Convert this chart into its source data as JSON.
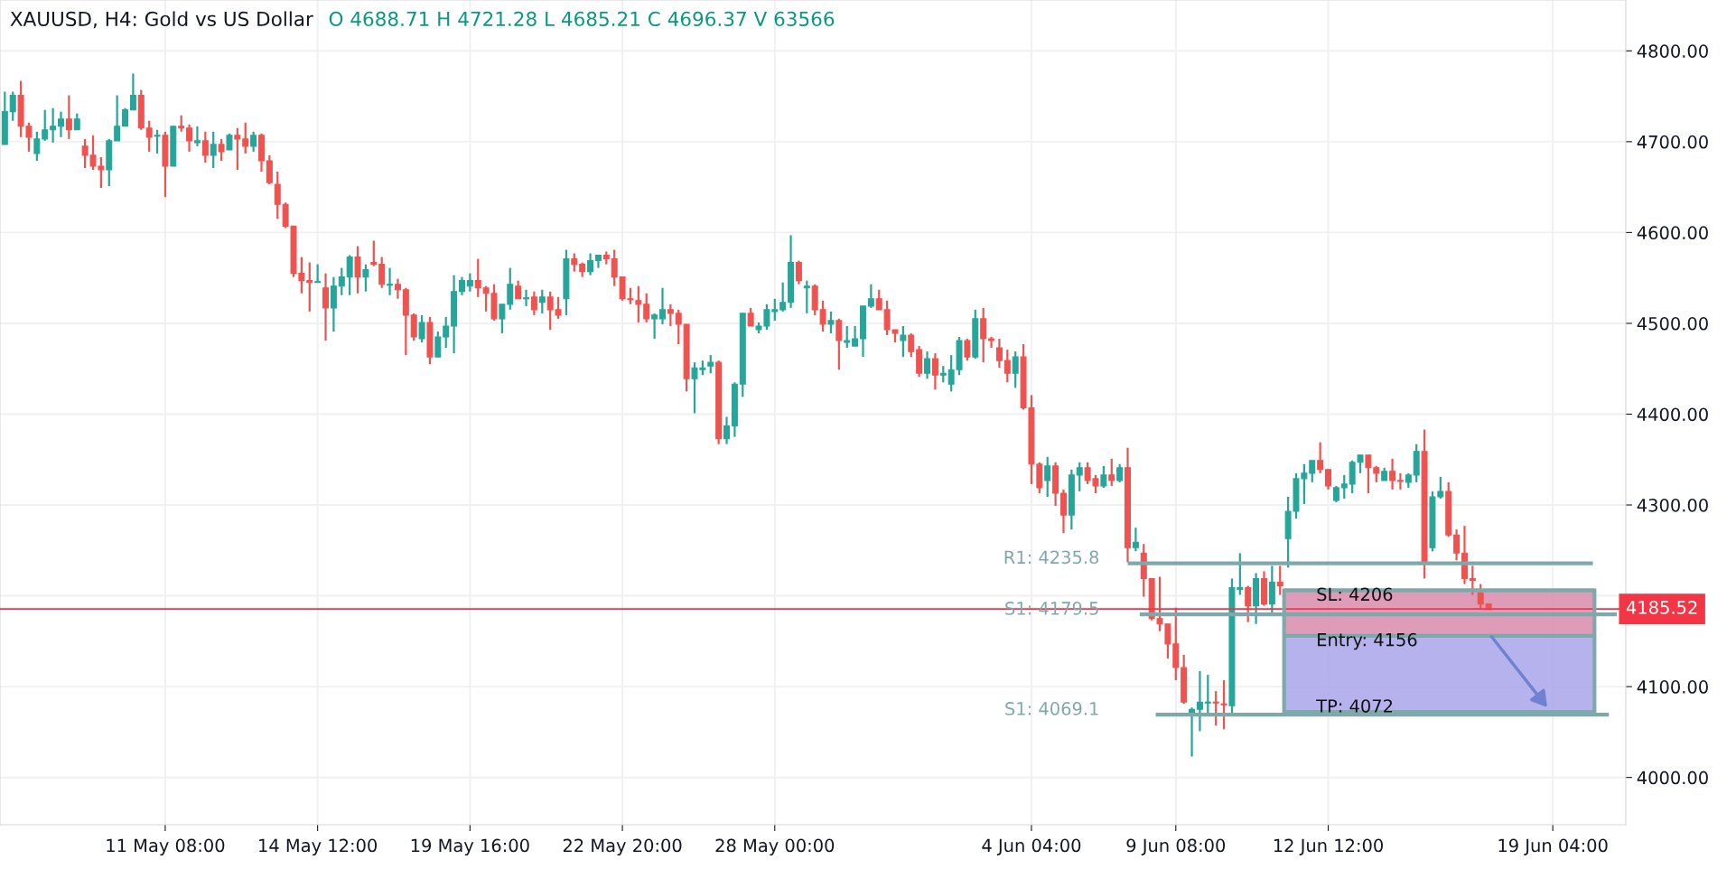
{
  "chart_data": {
    "type": "candlestick",
    "title": "XAUUSD, H4: Gold vs US Dollar",
    "subtitle": "O 4688.71 H 4721.28 L 4685.21 C 4696.37 V 63566",
    "categories": [
      null,
      null,
      null,
      null,
      null,
      null,
      null,
      null,
      null,
      null,
      null,
      null,
      null,
      null,
      null,
      null,
      null,
      null,
      null,
      null,
      "11 May 08:00",
      null,
      null,
      null,
      null,
      null,
      null,
      null,
      null,
      null,
      null,
      null,
      null,
      null,
      null,
      null,
      null,
      null,
      null,
      "14 May 12:00",
      null,
      null,
      null,
      null,
      null,
      null,
      null,
      null,
      null,
      null,
      null,
      null,
      null,
      null,
      null,
      null,
      null,
      null,
      "19 May 16:00",
      null,
      null,
      null,
      null,
      null,
      null,
      null,
      null,
      null,
      null,
      null,
      null,
      null,
      null,
      null,
      null,
      null,
      null,
      "22 May 20:00",
      null,
      null,
      null,
      null,
      null,
      null,
      null,
      null,
      null,
      null,
      null,
      null,
      null,
      null,
      null,
      null,
      null,
      null,
      "28 May 00:00",
      null,
      null,
      null,
      null,
      null,
      null,
      null,
      null,
      null,
      null,
      null,
      null,
      null,
      null,
      null,
      null,
      null,
      null,
      null,
      null,
      null,
      null,
      null,
      null,
      null,
      null,
      null,
      null,
      null,
      null,
      null,
      "4 Jun 04:00",
      null,
      null,
      null,
      null,
      null,
      null,
      null,
      null,
      null,
      null,
      null,
      null,
      null,
      null,
      null,
      null,
      null,
      "9 Jun 08:00",
      null,
      null,
      null,
      null,
      null,
      null,
      null,
      null,
      null,
      null,
      null,
      null,
      null,
      null,
      null,
      null,
      null,
      null,
      "12 Jun 12:00",
      null,
      null,
      null,
      null,
      null,
      null,
      null,
      null,
      null,
      null,
      null,
      null,
      null,
      null,
      null,
      null,
      null,
      null,
      null,
      null,
      null,
      null,
      null,
      null,
      null,
      null,
      null,
      "19 Jun 04:00",
      null,
      null,
      null,
      null,
      null,
      null,
      null,
      null,
      null
    ],
    "ohlc": [
      [
        4697,
        4755,
        4697,
        4733
      ],
      [
        4733,
        4755,
        4723,
        4751
      ],
      [
        4751,
        4767,
        4705,
        4717
      ],
      [
        4717,
        4721,
        4689,
        4705
      ],
      [
        4687,
        4711,
        4679,
        4703
      ],
      [
        4703,
        4735,
        4701,
        4713
      ],
      [
        4713,
        4737,
        4699,
        4717
      ],
      [
        4717,
        4733,
        4705,
        4725
      ],
      [
        4725,
        4751,
        4703,
        4713
      ],
      [
        4713,
        4731,
        4713,
        4725
      ],
      [
        4695,
        4703,
        4671,
        4685
      ],
      [
        4685,
        4707,
        4669,
        4673
      ],
      [
        4673,
        4683,
        4649,
        4669
      ],
      [
        4669,
        4703,
        4651,
        4701
      ],
      [
        4701,
        4751,
        4701,
        4717
      ],
      [
        4717,
        4737,
        4717,
        4735
      ],
      [
        4735,
        4775,
        4735,
        4751
      ],
      [
        4751,
        4757,
        4713,
        4715
      ],
      [
        4715,
        4723,
        4689,
        4705
      ],
      [
        4706,
        4713,
        4687,
        4707
      ],
      [
        4707,
        4711,
        4639,
        4673
      ],
      [
        4673,
        4717,
        4673,
        4717
      ],
      [
        4717,
        4729,
        4711,
        4715
      ],
      [
        4715,
        4719,
        4689,
        4701
      ],
      [
        4699,
        4717,
        4695,
        4701
      ],
      [
        4701,
        4711,
        4677,
        4685
      ],
      [
        4685,
        4711,
        4671,
        4697
      ],
      [
        4697,
        4703,
        4679,
        4689
      ],
      [
        4691,
        4709,
        4691,
        4707
      ],
      [
        4707,
        4715,
        4669,
        4703
      ],
      [
        4703,
        4721,
        4687,
        4695
      ],
      [
        4695,
        4711,
        4689,
        4707
      ],
      [
        4707,
        4709,
        4667,
        4679
      ],
      [
        4679,
        4685,
        4653,
        4655
      ],
      [
        4653,
        4667,
        4615,
        4631
      ],
      [
        4631,
        4633,
        4605,
        4607
      ],
      [
        4607,
        4607,
        4551,
        4555
      ],
      [
        4555,
        4573,
        4533,
        4547
      ],
      [
        4547,
        4567,
        4513,
        4545
      ],
      [
        4545,
        4565,
        4545,
        4546
      ],
      [
        4539,
        4555,
        4481,
        4517
      ],
      [
        4517,
        4551,
        4491,
        4541
      ],
      [
        4541,
        4561,
        4531,
        4551
      ],
      [
        4551,
        4575,
        4531,
        4573
      ],
      [
        4573,
        4585,
        4533,
        4551
      ],
      [
        4551,
        4565,
        4535,
        4559
      ],
      [
        4567,
        4591,
        4563,
        4565
      ],
      [
        4565,
        4573,
        4539,
        4543
      ],
      [
        4542,
        4561,
        4531,
        4543
      ],
      [
        4543,
        4549,
        4527,
        4537
      ],
      [
        4537,
        4539,
        4465,
        4509
      ],
      [
        4509,
        4511,
        4481,
        4485
      ],
      [
        4483,
        4509,
        4479,
        4501
      ],
      [
        4501,
        4507,
        4455,
        4463
      ],
      [
        4463,
        4491,
        4463,
        4485
      ],
      [
        4485,
        4507,
        4473,
        4497
      ],
      [
        4497,
        4553,
        4467,
        4535
      ],
      [
        4535,
        4551,
        4531,
        4547
      ],
      [
        4541,
        4555,
        4535,
        4547
      ],
      [
        4547,
        4571,
        4529,
        4539
      ],
      [
        4539,
        4541,
        4513,
        4533
      ],
      [
        4533,
        4543,
        4503,
        4505
      ],
      [
        4505,
        4521,
        4489,
        4521
      ],
      [
        4521,
        4561,
        4515,
        4543
      ],
      [
        4541,
        4547,
        4527,
        4527
      ],
      [
        4527,
        4537,
        4519,
        4528
      ],
      [
        4529,
        4535,
        4509,
        4515
      ],
      [
        4523,
        4537,
        4511,
        4529
      ],
      [
        4529,
        4535,
        4493,
        4515
      ],
      [
        4515,
        4529,
        4505,
        4509
      ],
      [
        4527,
        4581,
        4509,
        4571
      ],
      [
        4571,
        4577,
        4557,
        4565
      ],
      [
        4565,
        4567,
        4551,
        4557
      ],
      [
        4557,
        4577,
        4553,
        4569
      ],
      [
        4569,
        4575,
        4561,
        4575
      ],
      [
        4575,
        4579,
        4565,
        4571
      ],
      [
        4571,
        4581,
        4541,
        4551
      ],
      [
        4551,
        4551,
        4525,
        4527
      ],
      [
        4527,
        4539,
        4521,
        4526
      ],
      [
        4525,
        4541,
        4501,
        4521
      ],
      [
        4521,
        4533,
        4501,
        4505
      ],
      [
        4505,
        4511,
        4483,
        4509
      ],
      [
        4505,
        4539,
        4499,
        4515
      ],
      [
        4515,
        4521,
        4497,
        4511
      ],
      [
        4511,
        4515,
        4477,
        4499
      ],
      [
        4499,
        4499,
        4425,
        4439
      ],
      [
        4439,
        4457,
        4401,
        4451
      ],
      [
        4449,
        4459,
        4443,
        4451
      ],
      [
        4453,
        4465,
        4445,
        4457
      ],
      [
        4457,
        4459,
        4367,
        4373
      ],
      [
        4373,
        4397,
        4367,
        4387
      ],
      [
        4387,
        4435,
        4375,
        4433
      ],
      [
        4433,
        4511,
        4419,
        4511
      ],
      [
        4511,
        4517,
        4497,
        4497
      ],
      [
        4493,
        4501,
        4489,
        4497
      ],
      [
        4497,
        4521,
        4493,
        4515
      ],
      [
        4513,
        4527,
        4503,
        4515
      ],
      [
        4515,
        4545,
        4513,
        4523
      ],
      [
        4523,
        4597,
        4517,
        4567
      ],
      [
        4567,
        4569,
        4543,
        4547
      ],
      [
        4539,
        4547,
        4511,
        4541
      ],
      [
        4541,
        4543,
        4509,
        4515
      ],
      [
        4515,
        4525,
        4491,
        4499
      ],
      [
        4499,
        4513,
        4489,
        4503
      ],
      [
        4503,
        4505,
        4449,
        4481
      ],
      [
        4479,
        4497,
        4473,
        4481
      ],
      [
        4475,
        4497,
        4475,
        4483
      ],
      [
        4483,
        4519,
        4463,
        4519
      ],
      [
        4519,
        4543,
        4517,
        4527
      ],
      [
        4527,
        4537,
        4515,
        4515
      ],
      [
        4515,
        4525,
        4487,
        4493
      ],
      [
        4493,
        4493,
        4479,
        4489
      ],
      [
        4481,
        4497,
        4463,
        4487
      ],
      [
        4487,
        4489,
        4463,
        4469
      ],
      [
        4471,
        4475,
        4441,
        4445
      ],
      [
        4445,
        4469,
        4439,
        4461
      ],
      [
        4461,
        4467,
        4427,
        4443
      ],
      [
        4443,
        4453,
        4435,
        4445
      ],
      [
        4433,
        4465,
        4425,
        4449
      ],
      [
        4449,
        4485,
        4443,
        4481
      ],
      [
        4481,
        4483,
        4459,
        4463
      ],
      [
        4463,
        4515,
        4461,
        4505
      ],
      [
        4505,
        4517,
        4457,
        4483
      ],
      [
        4483,
        4485,
        4473,
        4481
      ],
      [
        4473,
        4483,
        4451,
        4459
      ],
      [
        4459,
        4471,
        4435,
        4445
      ],
      [
        4445,
        4469,
        4429,
        4463
      ],
      [
        4463,
        4477,
        4405,
        4407
      ],
      [
        4407,
        4421,
        4323,
        4345
      ],
      [
        4345,
        4347,
        4313,
        4319
      ],
      [
        4327,
        4353,
        4309,
        4343
      ],
      [
        4343,
        4347,
        4299,
        4313
      ],
      [
        4313,
        4317,
        4269,
        4289
      ],
      [
        4289,
        4339,
        4273,
        4333
      ],
      [
        4333,
        4347,
        4315,
        4341
      ],
      [
        4341,
        4347,
        4323,
        4327
      ],
      [
        4329,
        4333,
        4313,
        4321
      ],
      [
        4321,
        4343,
        4319,
        4333
      ],
      [
        4333,
        4351,
        4321,
        4327
      ],
      [
        4327,
        4345,
        4325,
        4341
      ],
      [
        4341,
        4363,
        4237,
        4253
      ],
      [
        4253,
        4275,
        4249,
        4259
      ],
      [
        4247,
        4257,
        4199,
        4219
      ],
      [
        4219,
        4219,
        4173,
        4175
      ],
      [
        4175,
        4221,
        4161,
        4169
      ],
      [
        4169,
        4169,
        4131,
        4147
      ],
      [
        4147,
        4187,
        4107,
        4121
      ],
      [
        4121,
        4135,
        4081,
        4083
      ],
      [
        4071,
        4077,
        4023,
        4075
      ],
      [
        4075,
        4117,
        4051,
        4083
      ],
      [
        4082,
        4113,
        4071,
        4083
      ],
      [
        4083,
        4095,
        4057,
        4082
      ],
      [
        4081,
        4107,
        4053,
        4080
      ],
      [
        4079,
        4219,
        4071,
        4209
      ],
      [
        4207,
        4247,
        4201,
        4209
      ],
      [
        4209,
        4211,
        4171,
        4189
      ],
      [
        4189,
        4225,
        4169,
        4219
      ],
      [
        4219,
        4227,
        4189,
        4191
      ],
      [
        4191,
        4233,
        4181,
        4215
      ],
      [
        4215,
        4233,
        4201,
        4211
      ],
      [
        4263,
        4309,
        4231,
        4293
      ],
      [
        4293,
        4335,
        4285,
        4329
      ],
      [
        4329,
        4345,
        4301,
        4335
      ],
      [
        4335,
        4349,
        4325,
        4349
      ],
      [
        4349,
        4369,
        4335,
        4339
      ],
      [
        4339,
        4339,
        4317,
        4321
      ],
      [
        4305,
        4321,
        4303,
        4319
      ],
      [
        4319,
        4333,
        4307,
        4323
      ],
      [
        4323,
        4349,
        4313,
        4347
      ],
      [
        4347,
        4355,
        4335,
        4355
      ],
      [
        4355,
        4355,
        4313,
        4341
      ],
      [
        4341,
        4343,
        4325,
        4335
      ],
      [
        4327,
        4341,
        4327,
        4337
      ],
      [
        4337,
        4351,
        4317,
        4327
      ],
      [
        4327,
        4335,
        4317,
        4326
      ],
      [
        4325,
        4335,
        4319,
        4333
      ],
      [
        4333,
        4367,
        4325,
        4359
      ],
      [
        4359,
        4383,
        4219,
        4237
      ],
      [
        4253,
        4315,
        4249,
        4309
      ],
      [
        4309,
        4331,
        4307,
        4315
      ],
      [
        4315,
        4325,
        4265,
        4267
      ],
      [
        4267,
        4273,
        4239,
        4247
      ],
      [
        4247,
        4277,
        4213,
        4219
      ],
      [
        4219,
        4233,
        4201,
        4217
      ],
      [
        4203,
        4213,
        4185,
        4191
      ],
      [
        4191,
        4191,
        4185,
        4185
      ],
      null,
      null,
      null,
      null,
      null,
      null,
      null,
      null,
      null,
      null,
      null,
      null,
      null,
      null,
      null,
      null,
      null
    ],
    "colors": [
      "#26a69a",
      "#26a69a",
      "#ef5350",
      "#ef5350",
      "#26a69a",
      "#26a69a",
      "#26a69a",
      "#26a69a",
      "#ef5350",
      "#26a69a",
      "#ef5350",
      "#ef5350",
      "#ef5350",
      "#26a69a",
      "#26a69a",
      "#26a69a",
      "#26a69a",
      "#ef5350",
      "#ef5350",
      "#26a69a",
      "#ef5350",
      "#26a69a",
      "#ef5350",
      "#ef5350",
      "#26a69a",
      "#ef5350",
      "#26a69a",
      "#ef5350",
      "#26a69a",
      "#ef5350",
      "#ef5350",
      "#26a69a",
      "#ef5350",
      "#ef5350",
      "#ef5350",
      "#ef5350",
      "#ef5350",
      "#ef5350",
      "#ef5350",
      "#26a69a",
      "#ef5350",
      "#26a69a",
      "#26a69a",
      "#26a69a",
      "#ef5350",
      "#26a69a",
      "#ef5350",
      "#ef5350",
      "#26a69a",
      "#ef5350",
      "#ef5350",
      "#ef5350",
      "#26a69a",
      "#ef5350",
      "#26a69a",
      "#26a69a",
      "#26a69a",
      "#26a69a",
      "#26a69a",
      "#ef5350",
      "#ef5350",
      "#ef5350",
      "#26a69a",
      "#26a69a",
      "#ef5350",
      "#26a69a",
      "#ef5350",
      "#26a69a",
      "#ef5350",
      "#ef5350",
      "#26a69a",
      "#ef5350",
      "#ef5350",
      "#26a69a",
      "#26a69a",
      "#ef5350",
      "#ef5350",
      "#ef5350",
      "#ef5350",
      "#ef5350",
      "#ef5350",
      "#26a69a",
      "#26a69a",
      "#ef5350",
      "#ef5350",
      "#ef5350",
      "#26a69a",
      "#26a69a",
      "#26a69a",
      "#ef5350",
      "#26a69a",
      "#26a69a",
      "#26a69a",
      "#ef5350",
      "#26a69a",
      "#26a69a",
      "#26a69a",
      "#26a69a",
      "#26a69a",
      "#ef5350",
      "#26a69a",
      "#ef5350",
      "#ef5350",
      "#26a69a",
      "#ef5350",
      "#26a69a",
      "#26a69a",
      "#26a69a",
      "#26a69a",
      "#ef5350",
      "#ef5350",
      "#ef5350",
      "#26a69a",
      "#ef5350",
      "#ef5350",
      "#26a69a",
      "#ef5350",
      "#26a69a",
      "#26a69a",
      "#26a69a",
      "#ef5350",
      "#26a69a",
      "#ef5350",
      "#ef5350",
      "#ef5350",
      "#ef5350",
      "#26a69a",
      "#ef5350",
      "#ef5350",
      "#ef5350",
      "#26a69a",
      "#ef5350",
      "#ef5350",
      "#26a69a",
      "#26a69a",
      "#ef5350",
      "#ef5350",
      "#26a69a",
      "#ef5350",
      "#26a69a",
      "#ef5350",
      "#26a69a",
      "#ef5350",
      "#ef5350",
      "#ef5350",
      "#ef5350",
      "#ef5350",
      "#ef5350",
      "#26a69a",
      "#26a69a",
      "#26a69a",
      "#ef5350",
      "#ef5350",
      "#26a69a",
      "#26a69a",
      "#ef5350",
      "#26a69a",
      "#ef5350",
      "#26a69a",
      "#ef5350",
      "#26a69a",
      "#26a69a",
      "#26a69a",
      "#26a69a",
      "#ef5350",
      "#ef5350",
      "#26a69a",
      "#26a69a",
      "#26a69a",
      "#26a69a",
      "#ef5350",
      "#ef5350",
      "#26a69a",
      "#ef5350",
      "#ef5350",
      "#26a69a",
      "#26a69a",
      "#ef5350",
      "#26a69a",
      "#26a69a",
      "#ef5350",
      "#ef5350",
      "#ef5350",
      "#ef5350",
      "#ef5350",
      "#ef5350",
      null,
      null,
      null,
      null,
      null,
      null,
      null,
      null,
      null,
      null,
      null,
      null,
      null,
      null,
      null,
      null,
      null
    ],
    "ylim": [
      3948,
      4856
    ],
    "yticks": [
      {
        "value": 4000,
        "label": "4000.00"
      },
      {
        "value": 4100,
        "label": "4100.00"
      },
      {
        "value": 4200,
        "label": null
      },
      {
        "value": 4300,
        "label": "4300.00"
      },
      {
        "value": 4400,
        "label": "4400.00"
      },
      {
        "value": 4500,
        "label": "4500.00"
      },
      {
        "value": 4600,
        "label": "4600.00"
      },
      {
        "value": 4700,
        "label": "4700.00"
      },
      {
        "value": 4800,
        "label": "4800.00"
      }
    ],
    "grid": true,
    "ref_lines": [
      {
        "axis": "y",
        "value": 4185.52,
        "label": "4185.52",
        "color": "#f23645"
      },
      {
        "axis": "y",
        "value": 4235.8,
        "label": "R1: 4235.8",
        "color": "#7fa8ab"
      },
      {
        "axis": "y",
        "value": 4179.5,
        "label": "S1: 4179.5",
        "color": "#7fa8ab"
      },
      {
        "axis": "y",
        "value": 4069.1,
        "label": "S1: 4069.1",
        "color": "#7fa8ab"
      },
      {
        "axis": "y",
        "value": 4206,
        "label": "SL: 4206",
        "color": "#7fa8ab"
      },
      {
        "axis": "y",
        "value": 4156,
        "label": "Entry: 4156",
        "color": "#7fa8ab"
      },
      {
        "axis": "y",
        "value": 4072,
        "label": "TP: 4072",
        "color": "#7fa8ab"
      }
    ],
    "bands": [
      {
        "axis": "y",
        "from": 4156,
        "to": 4206,
        "color": "#d98bab"
      },
      {
        "axis": "y",
        "from": 4072,
        "to": 4156,
        "color": "#a9a4ea"
      }
    ]
  }
}
